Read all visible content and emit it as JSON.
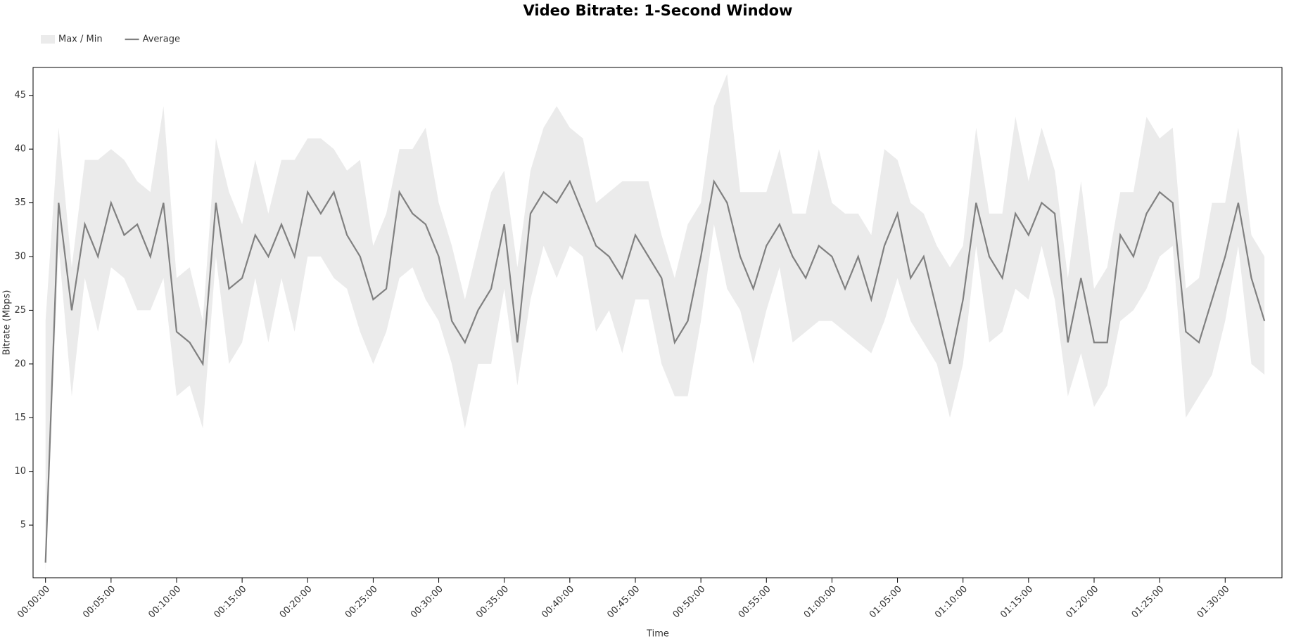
{
  "chart_data": {
    "type": "line",
    "title": "Video Bitrate: 1-Second Window",
    "x_label": "Time",
    "y_label": "Bitrate (Mbps)",
    "legend": "top-left",
    "x": [
      0,
      60,
      120,
      180,
      240,
      300,
      360,
      420,
      480,
      540,
      600,
      660,
      720,
      780,
      840,
      900,
      960,
      1020,
      1080,
      1140,
      1200,
      1260,
      1320,
      1380,
      1440,
      1500,
      1560,
      1620,
      1680,
      1740,
      1800,
      1860,
      1920,
      1980,
      2040,
      2100,
      2160,
      2220,
      2280,
      2340,
      2400,
      2460,
      2520,
      2580,
      2640,
      2700,
      2760,
      2820,
      2880,
      2940,
      3000,
      3060,
      3120,
      3180,
      3240,
      3300,
      3360,
      3420,
      3480,
      3540,
      3600,
      3660,
      3720,
      3780,
      3840,
      3900,
      3960,
      4020,
      4080,
      4140,
      4200,
      4260,
      4320,
      4380,
      4440,
      4500,
      4560,
      4620,
      4680,
      4740,
      4800,
      4860,
      4920,
      4980,
      5040,
      5100,
      5160,
      5220,
      5280,
      5340,
      5400,
      5460,
      5520,
      5580
    ],
    "series": [
      {
        "name": "Max / Min",
        "color": "#ebebeb",
        "max": [
          24,
          42,
          29,
          39,
          39,
          40,
          39,
          37,
          36,
          44,
          28,
          29,
          24,
          41,
          36,
          33,
          39,
          34,
          39,
          39,
          41,
          41,
          40,
          38,
          39,
          31,
          34,
          40,
          40,
          42,
          35,
          31,
          26,
          31,
          36,
          38,
          29,
          38,
          42,
          44,
          42,
          41,
          35,
          36,
          37,
          37,
          37,
          32,
          28,
          33,
          35,
          44,
          47,
          36,
          36,
          36,
          40,
          34,
          34,
          40,
          35,
          34,
          34,
          32,
          40,
          39,
          35,
          34,
          31,
          29,
          31,
          42,
          34,
          34,
          43,
          37,
          42,
          38,
          28,
          37,
          27,
          29,
          36,
          36,
          43,
          41,
          42,
          27,
          28,
          35,
          35,
          42,
          32,
          30
        ],
        "min": [
          0.5,
          31,
          17,
          28,
          23,
          29,
          28,
          25,
          25,
          28,
          17,
          18,
          14,
          30,
          20,
          22,
          28,
          22,
          28,
          23,
          30,
          30,
          28,
          27,
          23,
          20,
          23,
          28,
          29,
          26,
          24,
          20,
          14,
          20,
          20,
          27,
          18,
          26,
          31,
          28,
          31,
          30,
          23,
          25,
          21,
          26,
          26,
          20,
          17,
          17,
          24,
          33,
          27,
          25,
          20,
          25,
          29,
          22,
          23,
          24,
          24,
          23,
          22,
          21,
          24,
          28,
          24,
          22,
          20,
          15,
          20,
          31,
          22,
          23,
          27,
          26,
          31,
          26,
          17,
          21,
          16,
          18,
          24,
          25,
          27,
          30,
          31,
          15,
          17,
          19,
          24,
          31,
          20,
          19
        ]
      },
      {
        "name": "Average",
        "color": "#808080",
        "values": [
          1.5,
          35,
          25,
          33,
          30,
          35,
          32,
          33,
          30,
          35,
          23,
          22,
          20,
          35,
          27,
          28,
          32,
          30,
          33,
          30,
          36,
          34,
          36,
          32,
          30,
          26,
          27,
          36,
          34,
          33,
          30,
          24,
          22,
          25,
          27,
          33,
          22,
          34,
          36,
          35,
          37,
          34,
          31,
          30,
          28,
          32,
          30,
          28,
          22,
          24,
          30,
          37,
          35,
          30,
          27,
          31,
          33,
          30,
          28,
          31,
          30,
          27,
          30,
          26,
          31,
          34,
          28,
          30,
          25,
          20,
          26,
          35,
          30,
          28,
          34,
          32,
          35,
          34,
          22,
          28,
          22,
          22,
          32,
          30,
          34,
          36,
          35,
          23,
          22,
          26,
          30,
          35,
          28,
          24
        ]
      }
    ],
    "xlim": [
      -57,
      5660
    ],
    "xticks": [
      {
        "value": 0,
        "label": "00:00:00"
      },
      {
        "value": 300,
        "label": "00:05:00"
      },
      {
        "value": 600,
        "label": "00:10:00"
      },
      {
        "value": 900,
        "label": "00:15:00"
      },
      {
        "value": 1200,
        "label": "00:20:00"
      },
      {
        "value": 1500,
        "label": "00:25:00"
      },
      {
        "value": 1800,
        "label": "00:30:00"
      },
      {
        "value": 2100,
        "label": "00:35:00"
      },
      {
        "value": 2400,
        "label": "00:40:00"
      },
      {
        "value": 2700,
        "label": "00:45:00"
      },
      {
        "value": 3000,
        "label": "00:50:00"
      },
      {
        "value": 3300,
        "label": "00:55:00"
      },
      {
        "value": 3600,
        "label": "01:00:00"
      },
      {
        "value": 3900,
        "label": "01:05:00"
      },
      {
        "value": 4200,
        "label": "01:10:00"
      },
      {
        "value": 4500,
        "label": "01:15:00"
      },
      {
        "value": 4800,
        "label": "01:20:00"
      },
      {
        "value": 5100,
        "label": "01:25:00"
      },
      {
        "value": 5400,
        "label": "01:30:00"
      }
    ],
    "ylim": [
      0.1,
      47.6
    ],
    "yticks": [
      5,
      10,
      15,
      20,
      25,
      30,
      35,
      40,
      45
    ]
  }
}
